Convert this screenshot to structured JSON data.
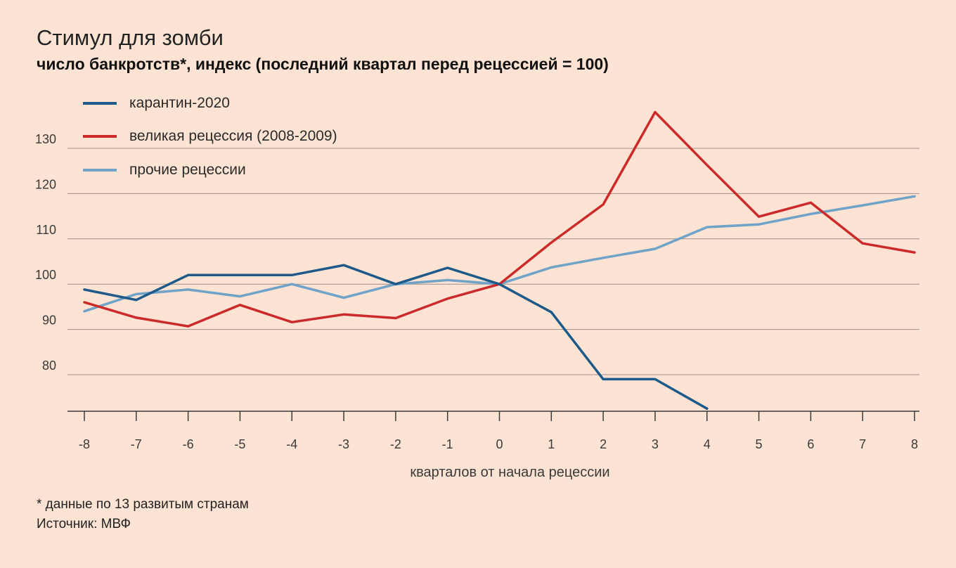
{
  "title": "Стимул для зомби",
  "subtitle": "число банкротств*, индекс (последний квартал перед рецессией = 100)",
  "footnote": "* данные по 13 развитым странам",
  "source": "Источник: МВФ",
  "chart_data": {
    "type": "line",
    "xlabel": "кварталов от начала рецессии",
    "ylabel": "",
    "x": [
      -8,
      -7,
      -6,
      -5,
      -4,
      -3,
      -2,
      -1,
      0,
      1,
      2,
      3,
      4,
      5,
      6,
      7,
      8
    ],
    "x_tick_labels": [
      "-8",
      "-7",
      "-6",
      "-5",
      "-4",
      "-3",
      "-2",
      "-1",
      "0",
      "1",
      "2",
      "3",
      "4",
      "5",
      "6",
      "7",
      "8"
    ],
    "y_ticks": [
      80,
      90,
      100,
      110,
      120,
      130
    ],
    "y_tick_labels": [
      "80",
      "90",
      "100",
      "110",
      "120",
      "130"
    ],
    "xlim": [
      -8,
      8
    ],
    "ylim": [
      73,
      140
    ],
    "grid": "horizontal",
    "legend_position": "top-left",
    "series": [
      {
        "name": "карантин-2020",
        "color": "#1d5a8a",
        "x": [
          -8,
          -7,
          -6,
          -5,
          -4,
          -3,
          -2,
          -1,
          0,
          1,
          2,
          3,
          4
        ],
        "values": [
          98.8,
          96.5,
          102,
          102,
          102,
          104.2,
          100,
          103.6,
          100,
          93.8,
          79,
          79,
          72.5
        ]
      },
      {
        "name": "великая рецессия (2008-2009)",
        "color": "#cc2a2a",
        "x": [
          -8,
          -7,
          -6,
          -5,
          -4,
          -3,
          -2,
          -1,
          0,
          1,
          2,
          3,
          4,
          5,
          6,
          7,
          8
        ],
        "values": [
          96,
          92.6,
          90.7,
          95.4,
          91.6,
          93.3,
          92.5,
          96.8,
          100,
          109.2,
          117.6,
          138,
          126.3,
          114.9,
          118,
          109,
          107
        ]
      },
      {
        "name": "прочие рецессии",
        "color": "#6fa3c8",
        "x": [
          -8,
          -7,
          -6,
          -5,
          -4,
          -3,
          -2,
          -1,
          0,
          1,
          2,
          3,
          4,
          5,
          6,
          7,
          8
        ],
        "values": [
          94,
          97.8,
          98.8,
          97.3,
          100,
          97,
          100,
          100.9,
          100,
          103.7,
          105.8,
          107.8,
          112.6,
          113.2,
          115.5,
          117.4,
          119.4
        ]
      }
    ]
  }
}
